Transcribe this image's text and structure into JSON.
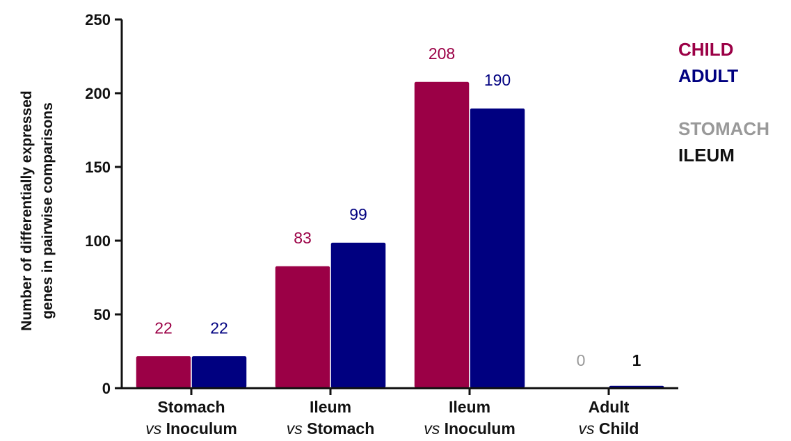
{
  "chart_data": {
    "type": "bar",
    "ylabel_lines": [
      "Number of differentially expressed",
      "genes in pairwise comparisons"
    ],
    "ylim": [
      0,
      250
    ],
    "yticks": [
      0,
      50,
      100,
      150,
      200,
      250
    ],
    "ytick_labels": [
      "0",
      "50",
      "100",
      "150",
      "200",
      "250"
    ],
    "categories": [
      {
        "line1": "Stomach",
        "line2_italic": "vs",
        "line2_rest": " Inoculum"
      },
      {
        "line1": "Ileum",
        "line2_italic": "vs",
        "line2_rest": " Stomach"
      },
      {
        "line1": "Ileum",
        "line2_italic": "vs",
        "line2_rest": " Inoculum"
      },
      {
        "line1": "Adult",
        "line2_italic": "vs",
        "line2_rest": " Child"
      }
    ],
    "series": [
      {
        "name": "CHILD",
        "color": "#9b0046",
        "values": [
          22,
          83,
          208,
          0
        ],
        "labels": [
          "22",
          "83",
          "208",
          "0"
        ]
      },
      {
        "name": "ADULT",
        "color": "#000080",
        "values": [
          22,
          99,
          190,
          1
        ],
        "labels": [
          "22",
          "99",
          "190",
          "1"
        ]
      }
    ],
    "last_group_bar_colors": [
      "#999999",
      "#111111"
    ],
    "legend": [
      {
        "text": "CHILD",
        "color": "#9b0046"
      },
      {
        "text": "ADULT",
        "color": "#000080"
      },
      {
        "text": "STOMACH",
        "color": "#999999"
      },
      {
        "text": "ILEUM",
        "color": "#111111"
      }
    ],
    "legend_placement": "top-right",
    "grid": false
  }
}
